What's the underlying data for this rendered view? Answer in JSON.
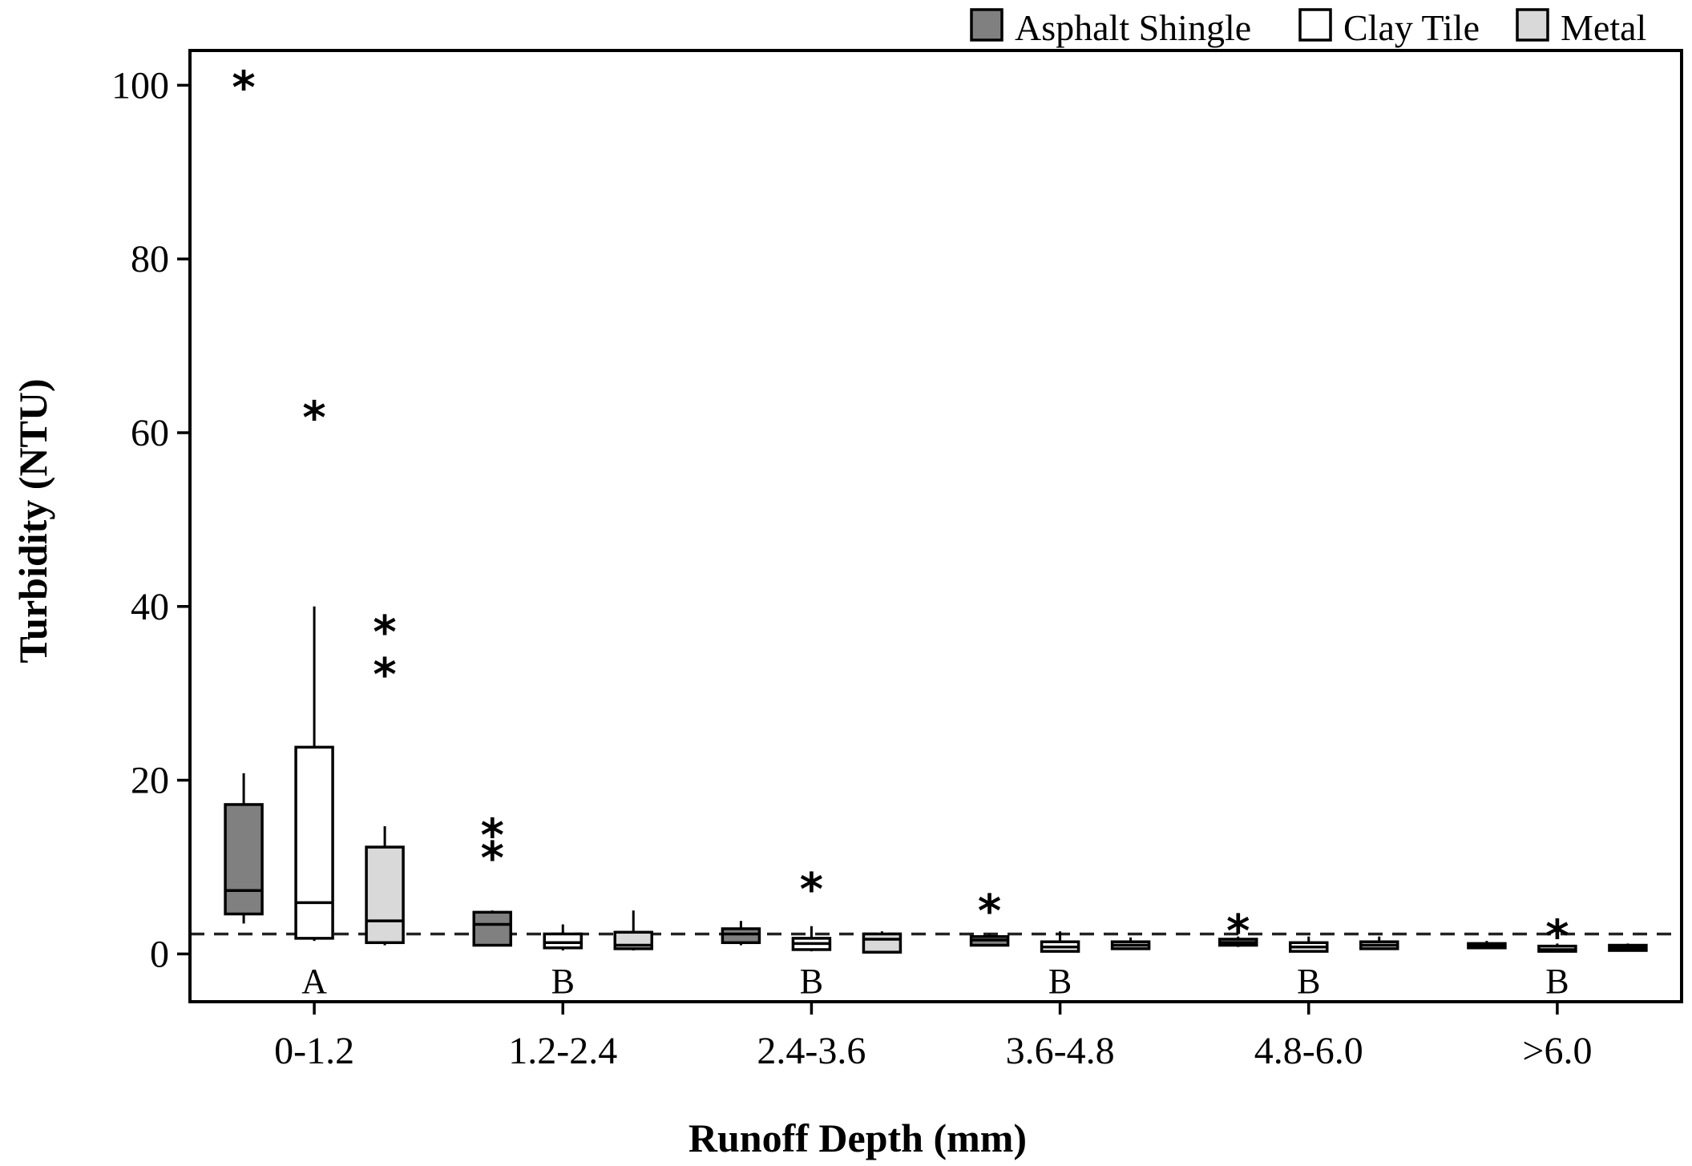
{
  "chart_data": {
    "type": "boxplot",
    "title": "",
    "xlabel": "Runoff Depth (mm)",
    "ylabel": "Turbidity (NTU)",
    "ylim": [
      -5.5,
      104
    ],
    "yticks": [
      0,
      20,
      40,
      60,
      80,
      100
    ],
    "reference_line": {
      "y": 2.3,
      "style": "dashed"
    },
    "categories": [
      "0-1.2",
      "1.2-2.4",
      "2.4-3.6",
      "3.6-4.8",
      "4.8-6.0",
      ">6.0"
    ],
    "group_letters": [
      "A",
      "B",
      "B",
      "B",
      "B",
      "B"
    ],
    "legend": {
      "position": "top-right",
      "title": ""
    },
    "series": [
      {
        "name": "Asphalt Shingle",
        "color": "#808080",
        "boxes": [
          {
            "whisker_low": 3.5,
            "q1": 4.6,
            "median": 7.3,
            "q3": 17.2,
            "whisker_high": 20.8,
            "outliers": [
              100
            ]
          },
          {
            "whisker_low": 1.0,
            "q1": 1.0,
            "median": 3.4,
            "q3": 4.8,
            "whisker_high": 5.0,
            "outliers": [
              11.3,
              13.9
            ]
          },
          {
            "whisker_low": 1.0,
            "q1": 1.3,
            "median": 2.3,
            "q3": 2.9,
            "whisker_high": 3.8,
            "outliers": []
          },
          {
            "whisker_low": 1.0,
            "q1": 1.0,
            "median": 1.6,
            "q3": 2.0,
            "whisker_high": 2.3,
            "outliers": [
              5.2
            ]
          },
          {
            "whisker_low": 0.8,
            "q1": 1.0,
            "median": 1.3,
            "q3": 1.7,
            "whisker_high": 2.0,
            "outliers": [
              2.9
            ]
          },
          {
            "whisker_low": 0.7,
            "q1": 0.7,
            "median": 1.0,
            "q3": 1.2,
            "whisker_high": 1.5,
            "outliers": []
          }
        ]
      },
      {
        "name": "Clay Tile",
        "color": "#ffffff",
        "boxes": [
          {
            "whisker_low": 1.5,
            "q1": 1.8,
            "median": 5.9,
            "q3": 23.8,
            "whisker_high": 40,
            "outliers": [
              62
            ]
          },
          {
            "whisker_low": 0.4,
            "q1": 0.7,
            "median": 1.3,
            "q3": 2.3,
            "whisker_high": 3.4,
            "outliers": []
          },
          {
            "whisker_low": 0.3,
            "q1": 0.5,
            "median": 1.2,
            "q3": 1.8,
            "whisker_high": 3.2,
            "outliers": [
              7.7
            ]
          },
          {
            "whisker_low": 0.2,
            "q1": 0.3,
            "median": 0.8,
            "q3": 1.4,
            "whisker_high": 2.6,
            "outliers": []
          },
          {
            "whisker_low": 0.2,
            "q1": 0.3,
            "median": 0.8,
            "q3": 1.3,
            "whisker_high": 2.0,
            "outliers": []
          },
          {
            "whisker_low": 0.2,
            "q1": 0.3,
            "median": 0.5,
            "q3": 0.9,
            "whisker_high": 1.2,
            "outliers": [
              2.3
            ]
          }
        ]
      },
      {
        "name": "Metal",
        "color": "#d9d9d9",
        "boxes": [
          {
            "whisker_low": 1.0,
            "q1": 1.3,
            "median": 3.8,
            "q3": 12.3,
            "whisker_high": 14.7,
            "outliers": [
              32.4,
              37.3
            ]
          },
          {
            "whisker_low": 0.4,
            "q1": 0.6,
            "median": 1.0,
            "q3": 2.5,
            "whisker_high": 5.0,
            "outliers": []
          },
          {
            "whisker_low": 0.1,
            "q1": 0.2,
            "median": 1.7,
            "q3": 2.3,
            "whisker_high": 2.6,
            "outliers": []
          },
          {
            "whisker_low": 0.5,
            "q1": 0.6,
            "median": 1.0,
            "q3": 1.4,
            "whisker_high": 1.9,
            "outliers": []
          },
          {
            "whisker_low": 0.5,
            "q1": 0.6,
            "median": 1.0,
            "q3": 1.4,
            "whisker_high": 2.0,
            "outliers": []
          },
          {
            "whisker_low": 0.3,
            "q1": 0.4,
            "median": 0.7,
            "q3": 1.0,
            "whisker_high": 1.2,
            "outliers": []
          }
        ]
      }
    ]
  }
}
